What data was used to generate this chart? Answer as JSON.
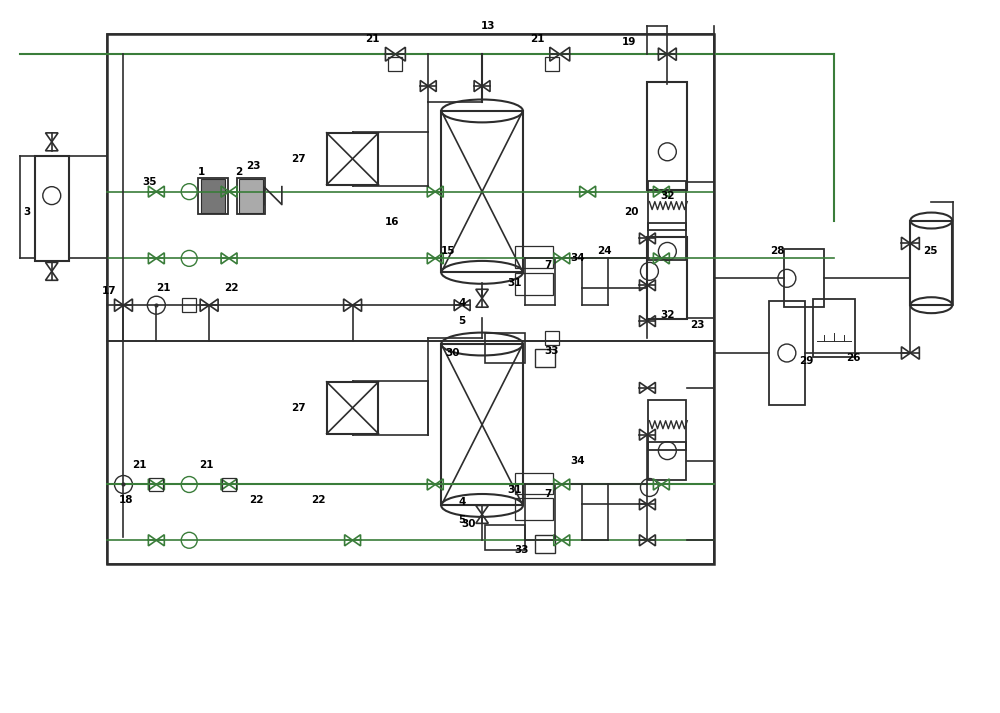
{
  "bg_color": "#ffffff",
  "line_color": "#2d2d2d",
  "green_line": "#3a7d3a",
  "fig_width": 10.0,
  "fig_height": 7.13
}
